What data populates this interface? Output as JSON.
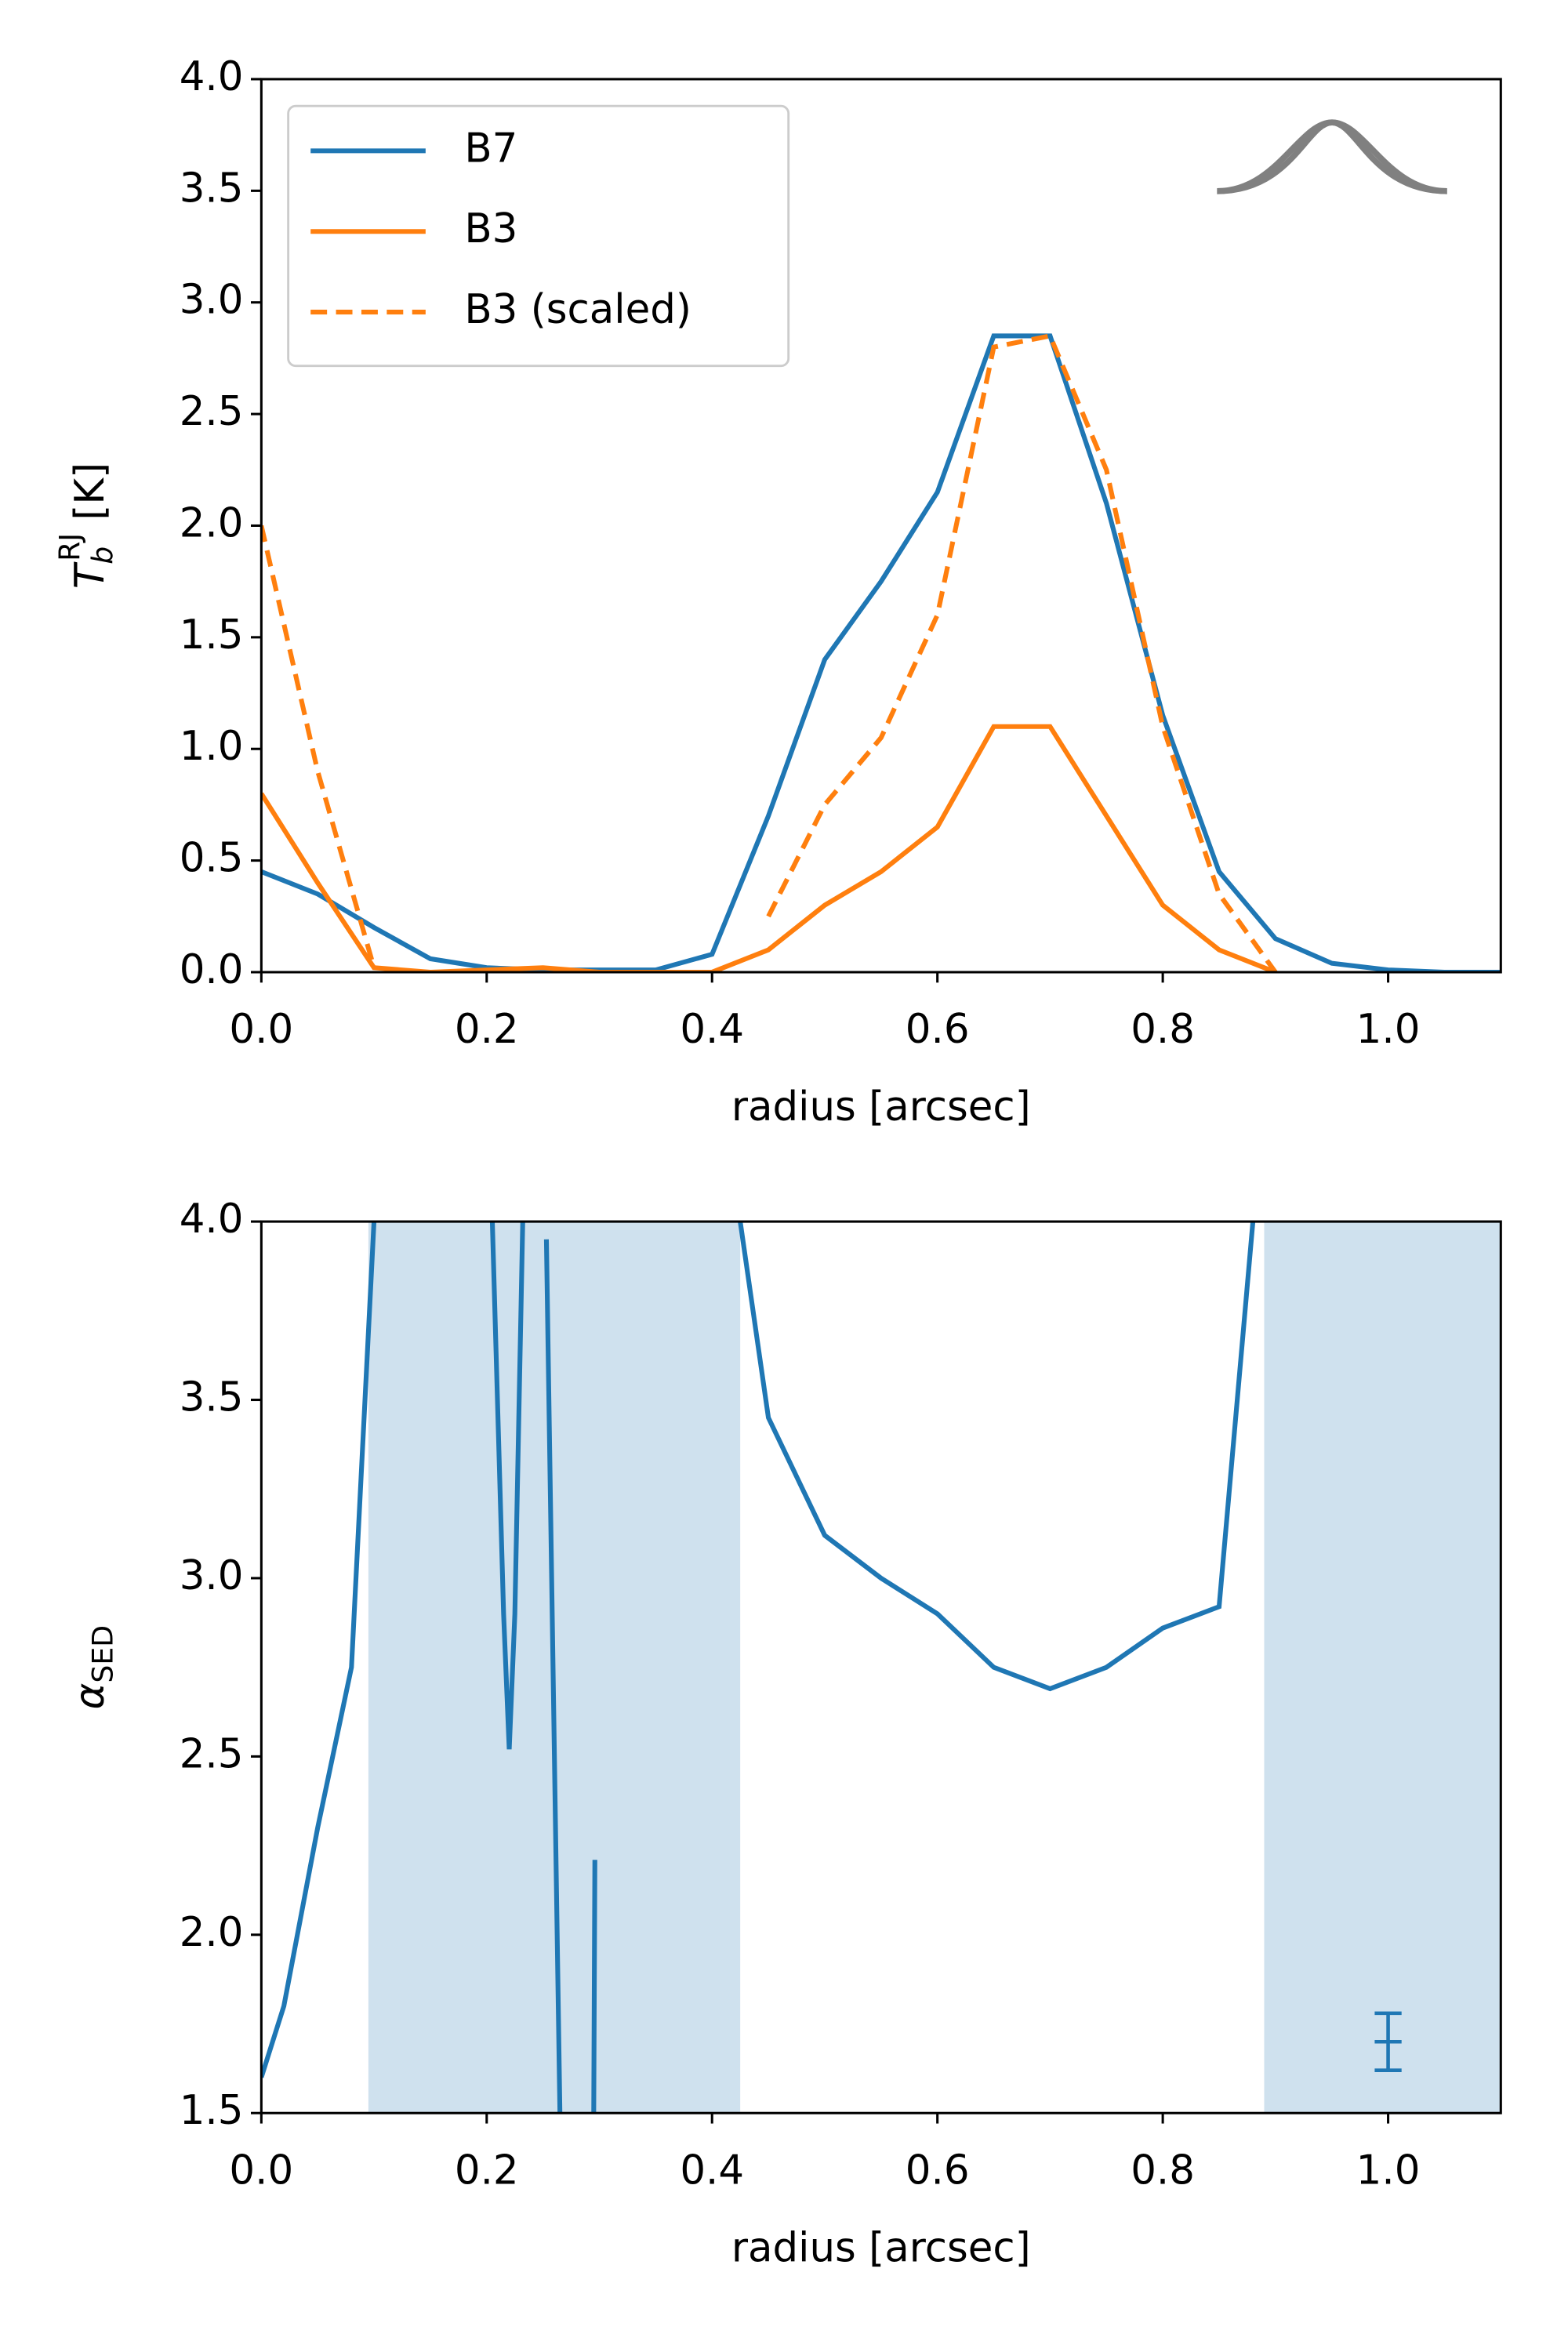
{
  "chart_data": [
    {
      "type": "line",
      "ylabel": {
        "base": "T",
        "sub": "b",
        "sup": "RJ",
        "unit": "[K]"
      },
      "xlabel": "radius [arcsec]",
      "x": [
        0,
        0.05,
        0.1,
        0.15,
        0.2,
        0.25,
        0.3,
        0.35,
        0.4,
        0.45,
        0.5,
        0.55,
        0.6,
        0.65,
        0.7,
        0.75,
        0.8,
        0.85,
        0.9,
        0.95,
        1.0,
        1.05,
        1.1
      ],
      "series": [
        {
          "name": "B7",
          "color": "#1f77b4",
          "linestyle": "solid",
          "values": [
            0.45,
            0.35,
            0.2,
            0.06,
            0.02,
            0.01,
            0.01,
            0.01,
            0.08,
            0.7,
            1.4,
            1.75,
            2.15,
            2.85,
            2.85,
            2.1,
            1.15,
            0.45,
            0.15,
            0.04,
            0.01,
            0,
            0
          ]
        },
        {
          "name": "B3",
          "color": "#ff7f0e",
          "linestyle": "solid",
          "values": [
            0.8,
            0.4,
            0.02,
            0,
            0.01,
            0.02,
            0,
            0,
            0,
            0.1,
            0.3,
            0.45,
            0.65,
            1.1,
            1.1,
            0.7,
            0.3,
            0.1,
            0,
            null,
            null,
            null,
            null
          ]
        },
        {
          "name": "B3 (scaled)",
          "color": "#ff7f0e",
          "linestyle": "dashed",
          "values": [
            2.0,
            0.9,
            0.02,
            null,
            null,
            null,
            null,
            null,
            null,
            0.25,
            0.75,
            1.05,
            1.6,
            2.8,
            2.85,
            2.25,
            1.1,
            0.35,
            0,
            null,
            null,
            null,
            null
          ]
        }
      ],
      "legend": "upper left",
      "xlim": [
        0,
        1.1
      ],
      "ylim": [
        0,
        4.0
      ],
      "xticks": [
        {
          "value": 0,
          "label": "0.0"
        },
        {
          "value": 0.2,
          "label": "0.2"
        },
        {
          "value": 0.4,
          "label": "0.4"
        },
        {
          "value": 0.6,
          "label": "0.6"
        },
        {
          "value": 0.8,
          "label": "0.8"
        },
        {
          "value": 1.0,
          "label": "1.0"
        }
      ],
      "yticks": [
        {
          "value": 0,
          "label": "0.0"
        },
        {
          "value": 0.5,
          "label": "0.5"
        },
        {
          "value": 1.0,
          "label": "1.0"
        },
        {
          "value": 1.5,
          "label": "1.5"
        },
        {
          "value": 2.0,
          "label": "2.0"
        },
        {
          "value": 2.5,
          "label": "2.5"
        },
        {
          "value": 3.0,
          "label": "3.0"
        },
        {
          "value": 3.5,
          "label": "3.5"
        },
        {
          "value": 4.0,
          "label": "4.0"
        }
      ]
    },
    {
      "type": "line",
      "ylabel": {
        "base": "α",
        "sub": "SED"
      },
      "xlabel": "radius [arcsec]",
      "x": [
        0,
        0.02,
        0.05,
        0.08,
        0.1,
        0.12,
        0.205,
        0.215,
        0.22,
        0.225,
        0.232,
        0.24,
        0.253,
        0.265,
        0.28,
        0.295,
        0.296,
        0.35,
        0.425,
        0.45,
        0.5,
        0.55,
        0.6,
        0.65,
        0.7,
        0.75,
        0.8,
        0.85,
        0.88
      ],
      "series": [
        {
          "color": "#1f77b4",
          "linestyle": "solid",
          "values": [
            1.6,
            1.8,
            2.3,
            2.75,
            4.0,
            null,
            4.0,
            2.9,
            2.52,
            2.9,
            4.0,
            null,
            3.95,
            1.5,
            null,
            1.5,
            2.21,
            null,
            4.0,
            3.45,
            3.12,
            3.0,
            2.9,
            2.75,
            2.69,
            2.75,
            2.86,
            2.92,
            4.0
          ]
        }
      ],
      "shaded_regions": [
        [
          0.095,
          0.425
        ],
        [
          0.89,
          1.1
        ]
      ],
      "shade_color": "#cfe1ee",
      "errorbar": {
        "x": 1.0,
        "y": 1.7,
        "yerr": 0.08,
        "color": "#1f77b4"
      },
      "xlim": [
        0,
        1.1
      ],
      "ylim": [
        1.5,
        4.0
      ],
      "xticks": [
        {
          "value": 0,
          "label": "0.0"
        },
        {
          "value": 0.2,
          "label": "0.2"
        },
        {
          "value": 0.4,
          "label": "0.4"
        },
        {
          "value": 0.6,
          "label": "0.6"
        },
        {
          "value": 0.8,
          "label": "0.8"
        },
        {
          "value": 1.0,
          "label": "1.0"
        }
      ],
      "yticks": [
        {
          "value": 1.5,
          "label": "1.5"
        },
        {
          "value": 2.0,
          "label": "2.0"
        },
        {
          "value": 2.5,
          "label": "2.5"
        },
        {
          "value": 3.0,
          "label": "3.0"
        },
        {
          "value": 3.5,
          "label": "3.5"
        },
        {
          "value": 4.0,
          "label": "4.0"
        }
      ]
    }
  ]
}
